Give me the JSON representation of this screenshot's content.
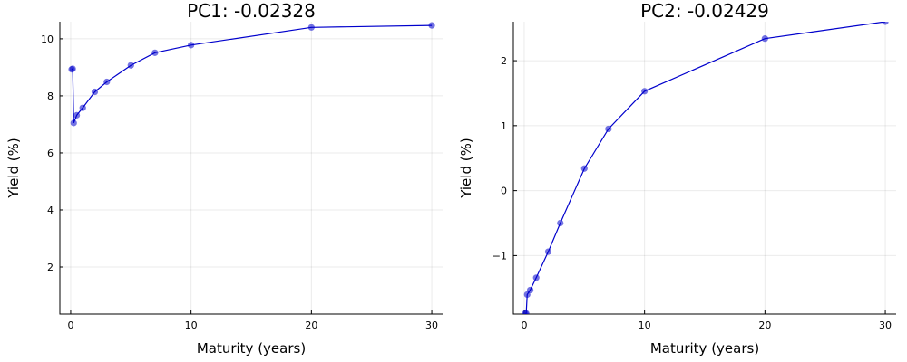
{
  "chart_data": [
    {
      "type": "line",
      "title": "PC1: -0.02328",
      "xlabel": "Maturity (years)",
      "ylabel": "Yield (%)",
      "xlim": [
        -0.9,
        30.9
      ],
      "ylim": [
        0.35,
        10.6
      ],
      "xticks": [
        0,
        10,
        20,
        30
      ],
      "yticks": [
        2,
        4,
        6,
        8,
        10
      ],
      "xtick_labels": [
        "0",
        "10",
        "20",
        "30"
      ],
      "ytick_labels": [
        "2",
        "4",
        "6",
        "8",
        "10"
      ],
      "grid": true,
      "series": [
        {
          "color": "#0000cc",
          "x": [
            0.083,
            0.167,
            0.25,
            0.5,
            1,
            2,
            3,
            5,
            7,
            10,
            20,
            30
          ],
          "y": [
            8.93,
            8.95,
            7.05,
            7.32,
            7.58,
            8.14,
            8.49,
            9.07,
            9.51,
            9.78,
            10.4,
            10.47
          ]
        }
      ]
    },
    {
      "type": "line",
      "title": "PC2: -0.02429",
      "xlabel": "Maturity (years)",
      "ylabel": "Yield (%)",
      "xlim": [
        -0.9,
        30.9
      ],
      "ylim": [
        -1.9,
        2.6
      ],
      "xticks": [
        0,
        10,
        20,
        30
      ],
      "yticks": [
        -1,
        0,
        1,
        2
      ],
      "xtick_labels": [
        "0",
        "10",
        "20",
        "30"
      ],
      "ytick_labels": [
        "−1",
        "0",
        "1",
        "2"
      ],
      "grid": true,
      "series": [
        {
          "color": "#0000cc",
          "x": [
            0.083,
            0.167,
            0.25,
            0.5,
            1,
            2,
            3,
            5,
            7,
            10,
            20,
            30
          ],
          "y": [
            -1.89,
            -1.89,
            -1.6,
            -1.53,
            -1.34,
            -0.94,
            -0.5,
            0.34,
            0.95,
            1.53,
            2.34,
            2.6
          ]
        }
      ]
    }
  ]
}
